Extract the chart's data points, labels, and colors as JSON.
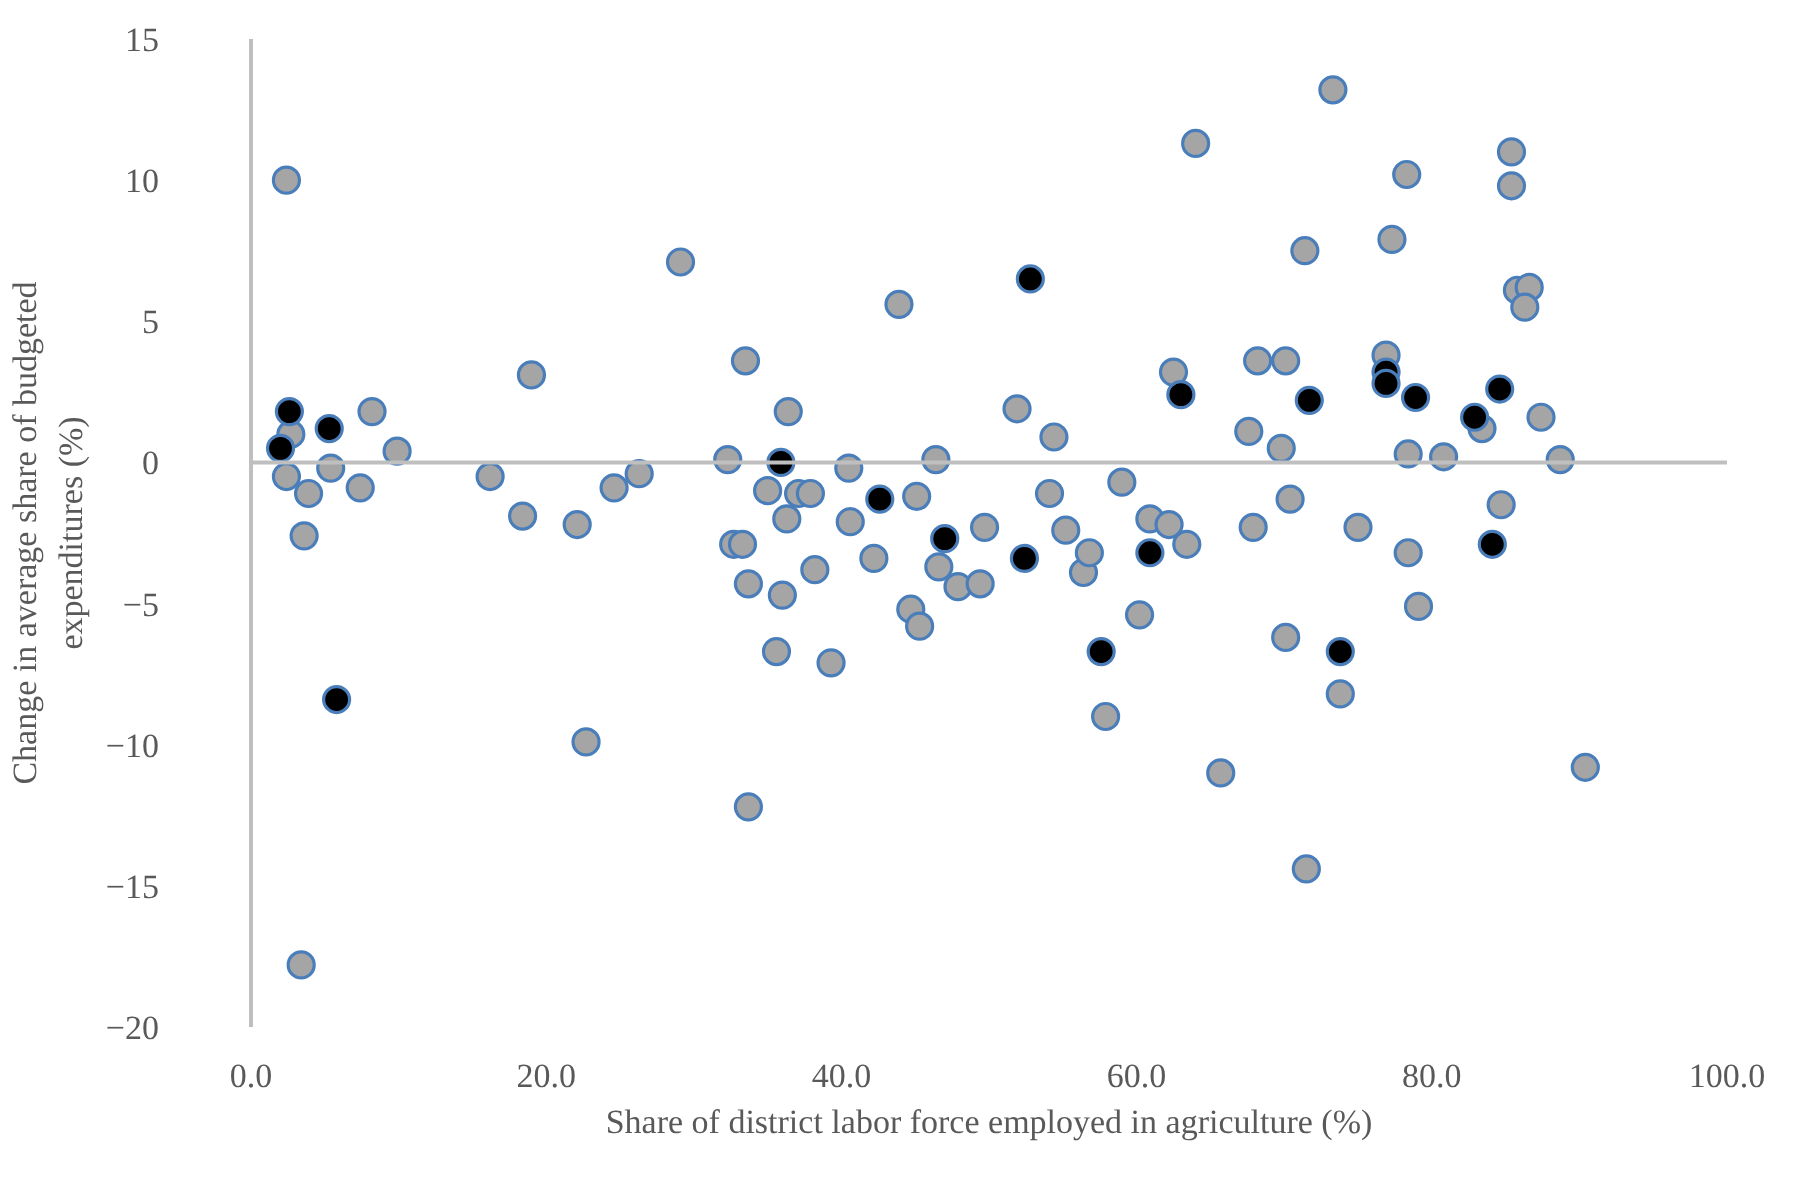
{
  "chart_data": {
    "type": "scatter",
    "xlabel": "Share of district labor force employed in agriculture (%)",
    "ylabel": "Change in average share of budgeted expenditures (%)",
    "xlim": [
      0,
      100
    ],
    "ylim": [
      -20,
      15
    ],
    "xticks": [
      {
        "value": 0,
        "label": "0.0"
      },
      {
        "value": 20,
        "label": "20.0"
      },
      {
        "value": 40,
        "label": "40.0"
      },
      {
        "value": 60,
        "label": "60.0"
      },
      {
        "value": 80,
        "label": "80.0"
      },
      {
        "value": 100,
        "label": "100.0"
      }
    ],
    "yticks": [
      -20,
      -15,
      -10,
      -5,
      0,
      5,
      10,
      15
    ],
    "grid": false,
    "marker": "circle",
    "ref_lines": [
      {
        "axis": "y",
        "value": 0,
        "color": "#bfbfbf"
      }
    ],
    "series": [
      {
        "color": "#a5a5a5",
        "x": [
          2.4,
          2.7,
          2.4,
          3.9,
          3.6,
          3.4,
          5.4,
          7.4,
          8.2,
          9.9,
          16.2,
          18.4,
          19.0,
          22.1,
          22.7,
          24.6,
          26.3,
          29.1,
          32.3,
          32.7,
          33.3,
          33.5,
          33.7,
          33.7,
          35.0,
          35.6,
          36.0,
          36.3,
          36.4,
          37.1,
          37.9,
          38.2,
          39.3,
          40.5,
          40.6,
          42.2,
          43.9,
          44.7,
          45.1,
          45.3,
          46.4,
          46.6,
          47.9,
          49.4,
          49.7,
          51.9,
          54.4,
          54.1,
          55.2,
          56.4,
          56.8,
          57.9,
          59.0,
          60.2,
          60.9,
          62.2,
          62.5,
          63.4,
          64.0,
          65.7,
          67.6,
          67.9,
          68.2,
          69.8,
          70.1,
          70.1,
          70.4,
          71.4,
          71.5,
          73.3,
          73.8,
          75.0,
          76.9,
          77.3,
          78.3,
          78.4,
          78.4,
          79.1,
          80.8,
          83.4,
          84.7,
          85.4,
          85.4,
          85.8,
          86.6,
          86.3,
          87.4,
          88.7,
          90.4
        ],
        "values": [
          10.0,
          1.0,
          -0.5,
          -1.1,
          -2.6,
          -17.8,
          -0.2,
          -0.9,
          1.8,
          0.4,
          -0.5,
          -1.9,
          3.1,
          -2.2,
          -9.9,
          -0.9,
          -0.4,
          7.1,
          0.1,
          -2.9,
          -2.9,
          3.6,
          -4.3,
          -12.2,
          -1.0,
          -6.7,
          -4.7,
          -2.0,
          1.8,
          -1.1,
          -1.1,
          -3.8,
          -7.1,
          -0.2,
          -2.1,
          -3.4,
          5.6,
          -5.2,
          -1.2,
          -5.8,
          0.1,
          -3.7,
          -4.4,
          -4.3,
          -2.3,
          1.9,
          0.9,
          -1.1,
          -2.4,
          -3.9,
          -3.2,
          -9.0,
          -0.7,
          -5.4,
          -2.0,
          -2.2,
          3.2,
          -2.9,
          11.3,
          -11.0,
          1.1,
          -2.3,
          3.6,
          0.5,
          3.6,
          -6.2,
          -1.3,
          7.5,
          -14.4,
          13.2,
          -8.2,
          -2.3,
          3.8,
          7.9,
          10.2,
          0.3,
          -3.2,
          -5.1,
          0.2,
          1.2,
          -1.5,
          11.0,
          9.8,
          6.1,
          6.2,
          5.5,
          1.6,
          0.1,
          -10.8
        ]
      },
      {
        "color": "#000000",
        "x": [
          2.0,
          2.6,
          5.3,
          5.8,
          35.9,
          42.6,
          47.0,
          52.4,
          52.8,
          57.6,
          60.9,
          63.0,
          71.7,
          73.8,
          76.9,
          76.9,
          78.9,
          82.9,
          84.1,
          84.6
        ],
        "values": [
          0.5,
          1.8,
          1.2,
          -8.4,
          0.0,
          -1.3,
          -2.7,
          -3.4,
          6.5,
          -6.7,
          -3.2,
          2.4,
          2.2,
          -6.7,
          3.2,
          2.8,
          2.3,
          1.6,
          -2.9,
          2.6
        ]
      }
    ]
  }
}
